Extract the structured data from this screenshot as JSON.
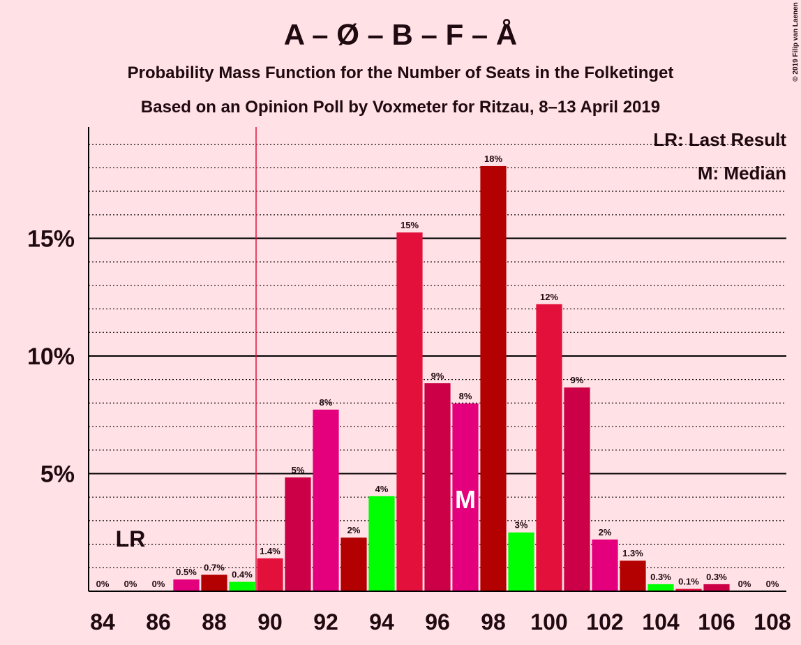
{
  "chart_data": {
    "type": "bar",
    "title": "A – Ø – B – F – Å",
    "subtitles": [
      "Probability Mass Function for the Number of Seats in the Folketinget",
      "Based on an Opinion Poll by Voxmeter for Ritzau, 8–13 April 2019"
    ],
    "credit": "© 2019 Filip van Laenen",
    "x": [
      84,
      85,
      86,
      87,
      88,
      89,
      90,
      91,
      92,
      93,
      94,
      95,
      96,
      97,
      98,
      99,
      100,
      101,
      102,
      103,
      104,
      105,
      106,
      107,
      108
    ],
    "values": [
      0,
      0,
      0,
      0.5,
      0.7,
      0.4,
      1.4,
      4.84,
      7.72,
      2.28,
      4.04,
      15.25,
      8.84,
      7.98,
      18.07,
      2.5,
      12.2,
      8.66,
      2.2,
      1.3,
      0.3,
      0.1,
      0.3,
      0,
      0
    ],
    "value_labels": [
      "0%",
      "0%",
      "0%",
      "0.5%",
      "0.7%",
      "0.4%",
      "1.4%",
      "5%",
      "8%",
      "2%",
      "4%",
      "15%",
      "9%",
      "8%",
      "18%",
      "3%",
      "12%",
      "9%",
      "2%",
      "1.3%",
      "0.3%",
      "0.1%",
      "0.3%",
      "0%",
      "0%"
    ],
    "colors": [
      "#00ff00",
      "#e3103c",
      "#cc0046",
      "#e4007c",
      "#b30000",
      "#00ff00",
      "#e3103c",
      "#cc0046",
      "#e4007c",
      "#b30000",
      "#00ff00",
      "#e3103c",
      "#cc0046",
      "#e4007c",
      "#b30000",
      "#00ff00",
      "#e3103c",
      "#cc0046",
      "#e4007c",
      "#b30000",
      "#00ff00",
      "#e3103c",
      "#cc0046",
      "#e4007c",
      "#b30000"
    ],
    "xlim": [
      83.5,
      108.5
    ],
    "xticks": [
      84,
      86,
      88,
      90,
      92,
      94,
      96,
      98,
      100,
      102,
      104,
      106,
      108
    ],
    "ylim": [
      0,
      19.73
    ],
    "yticks": [
      {
        "value": 5,
        "label": "5%"
      },
      {
        "value": 10,
        "label": "10%"
      },
      {
        "value": 15,
        "label": "15%"
      }
    ],
    "minor_yticks": [
      1,
      2,
      3,
      4,
      6,
      7,
      8,
      9,
      11,
      12,
      13,
      14,
      16,
      17,
      18,
      19
    ],
    "majority_line": 89.5,
    "majority_color": "#e3103c",
    "last_result": 85,
    "last_result_label": "LR",
    "median": 97,
    "median_label": "M",
    "legend": [
      "LR: Last Result",
      "M: Median"
    ]
  }
}
